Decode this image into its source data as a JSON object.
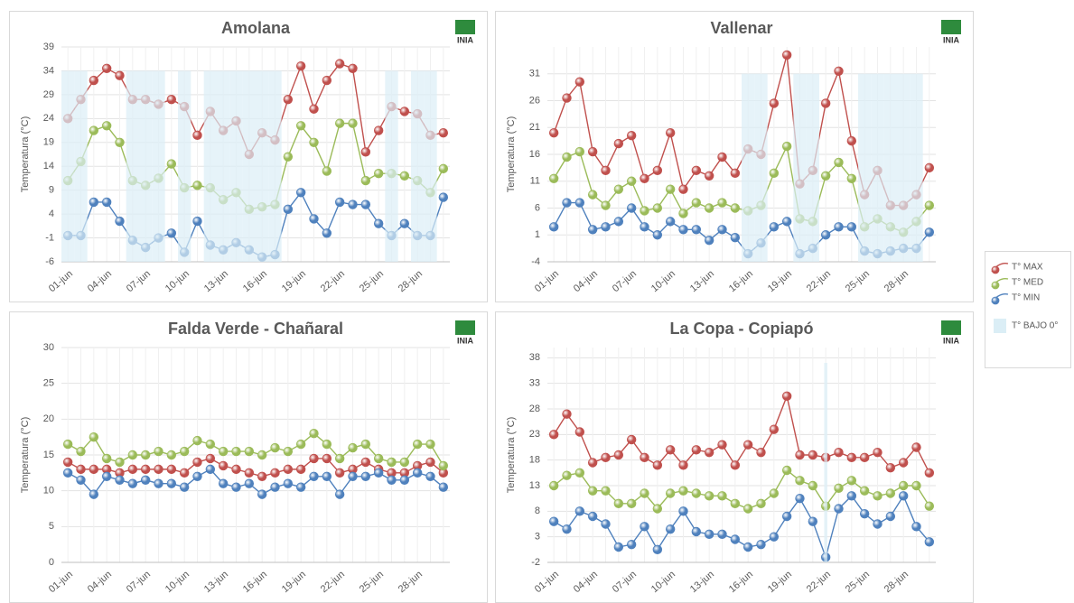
{
  "logo": "INIA",
  "chart_data": [
    {
      "type": "line",
      "title": "Amolana",
      "y_label": "Temperatura (°C)",
      "categories": [
        "01-jun",
        null,
        null,
        "04-jun",
        null,
        null,
        "07-jun",
        null,
        null,
        "10-jun",
        null,
        null,
        "13-jun",
        null,
        null,
        "16-jun",
        null,
        null,
        "19-jun",
        null,
        null,
        "22-jun",
        null,
        null,
        "25-jun",
        null,
        null,
        "28-jun",
        null,
        null
      ],
      "ylim": [
        -6,
        39
      ],
      "yticks": [
        -6,
        -1,
        4,
        9,
        14,
        19,
        24,
        29,
        34,
        39
      ],
      "grid": true,
      "series": [
        {
          "name": "T° MAX",
          "color": "#c0504d",
          "values": [
            24,
            28,
            32,
            34.5,
            33,
            28,
            28,
            27,
            28,
            26.5,
            20.5,
            25.5,
            21.5,
            23.5,
            16.5,
            21,
            19.5,
            28,
            35,
            26,
            32,
            35.5,
            34.5,
            17,
            21.5,
            26.5,
            25.5,
            25,
            20.5,
            21
          ]
        },
        {
          "name": "T° MED",
          "color": "#9bbb59",
          "values": [
            11,
            15,
            21.5,
            22.5,
            19,
            11,
            10,
            11.5,
            14.5,
            9.5,
            10,
            9.5,
            7,
            8.5,
            5,
            5.5,
            6,
            16,
            22.5,
            19,
            13,
            23,
            23,
            11,
            12.5,
            12.5,
            12,
            11,
            8.5,
            13.5
          ]
        },
        {
          "name": "T° MIN",
          "color": "#4f81bd",
          "values": [
            -0.5,
            -0.5,
            6.5,
            6.5,
            2.5,
            -1.5,
            -3,
            -1,
            0,
            -4,
            2.5,
            -2.5,
            -3.5,
            -2,
            -3.5,
            -5,
            -4.5,
            5,
            8.5,
            3,
            0,
            6.5,
            6,
            6,
            2,
            -0.5,
            2,
            -0.5,
            -0.5,
            7.5
          ]
        },
        {
          "name": "T° BAJO 0°",
          "type": "bar",
          "color": "#dbeef6",
          "values": [
            34,
            34,
            null,
            null,
            null,
            34,
            34,
            34,
            null,
            34,
            null,
            34,
            34,
            34,
            34,
            34,
            34,
            null,
            null,
            null,
            null,
            null,
            null,
            null,
            null,
            34,
            null,
            34,
            34,
            null
          ]
        }
      ]
    },
    {
      "type": "line",
      "title": "Vallenar",
      "y_label": "Temperatura (°C)",
      "categories": [
        "01-jun",
        null,
        null,
        "04-jun",
        null,
        null,
        "07-jun",
        null,
        null,
        "10-jun",
        null,
        null,
        "13-jun",
        null,
        null,
        "16-jun",
        null,
        null,
        "19-jun",
        null,
        null,
        "22-jun",
        null,
        null,
        "25-jun",
        null,
        null,
        "28-jun",
        null,
        null
      ],
      "ylim": [
        -4,
        36
      ],
      "yticks": [
        -4,
        1,
        6,
        11,
        16,
        21,
        26,
        31
      ],
      "grid": true,
      "series": [
        {
          "name": "T° MAX",
          "color": "#c0504d",
          "values": [
            20,
            26.5,
            29.5,
            16.5,
            13,
            18,
            19.5,
            11.5,
            13,
            20,
            9.5,
            13,
            12,
            15.5,
            12.5,
            17,
            16,
            25.5,
            34.5,
            10.5,
            13,
            25.5,
            31.5,
            18.5,
            8.5,
            13,
            6.5,
            6.5,
            8.5,
            13.5
          ]
        },
        {
          "name": "T° MED",
          "color": "#9bbb59",
          "values": [
            11.5,
            15.5,
            16.5,
            8.5,
            6.5,
            9.5,
            11,
            5.5,
            6,
            9.5,
            5,
            7,
            6,
            7,
            6,
            5.5,
            6.5,
            12.5,
            17.5,
            4,
            3.5,
            12,
            14.5,
            11.5,
            2.5,
            4,
            2.5,
            1.5,
            3.5,
            6.5
          ]
        },
        {
          "name": "T° MIN",
          "color": "#4f81bd",
          "values": [
            2.5,
            7,
            7,
            2,
            2.5,
            3.5,
            6,
            2.5,
            1,
            3.5,
            2,
            2,
            0,
            2,
            0.5,
            -2.5,
            -0.5,
            2.5,
            3.5,
            -2.5,
            -1.5,
            1,
            2.5,
            2.5,
            -2,
            -2.5,
            -2,
            -1.5,
            -1.5,
            1.5
          ]
        },
        {
          "name": "T° BAJO 0°",
          "type": "bar",
          "color": "#dbeef6",
          "values": [
            null,
            null,
            null,
            null,
            null,
            null,
            null,
            null,
            null,
            null,
            null,
            null,
            null,
            null,
            null,
            31,
            31,
            null,
            null,
            31,
            31,
            null,
            null,
            null,
            31,
            31,
            31,
            31,
            31,
            null
          ]
        }
      ]
    },
    {
      "type": "line",
      "title": "Falda Verde  - Chañaral",
      "y_label": "Temperatura (°C)",
      "categories": [
        "01-jun",
        null,
        null,
        "04-jun",
        null,
        null,
        "07-jun",
        null,
        null,
        "10-jun",
        null,
        null,
        "13-jun",
        null,
        null,
        "16-jun",
        null,
        null,
        "19-jun",
        null,
        null,
        "22-jun",
        null,
        null,
        "25-jun",
        null,
        null,
        "28-jun",
        null,
        null
      ],
      "ylim": [
        0,
        30
      ],
      "yticks": [
        0,
        5,
        10,
        15,
        20,
        25,
        30
      ],
      "grid": true,
      "series": [
        {
          "name": "T° MAX",
          "color": "#c0504d",
          "values": [
            14,
            13,
            13,
            13,
            12.5,
            13,
            13,
            13,
            13,
            12.5,
            14,
            14.5,
            13.5,
            13,
            12.5,
            12,
            12.5,
            13,
            13,
            14.5,
            14.5,
            12.5,
            13,
            14,
            13,
            12.5,
            12.5,
            13.5,
            14,
            12.5
          ]
        },
        {
          "name": "T° MED",
          "color": "#9bbb59",
          "values": [
            16.5,
            15.5,
            17.5,
            14.5,
            14,
            15,
            15,
            15.5,
            15,
            15.5,
            17,
            16.5,
            15.5,
            15.5,
            15.5,
            15,
            16,
            15.5,
            16.5,
            18,
            16.5,
            14.5,
            16,
            16.5,
            14.5,
            14,
            14,
            16.5,
            16.5,
            13.5
          ]
        },
        {
          "name": "T° MIN",
          "color": "#4f81bd",
          "values": [
            12.5,
            11.5,
            9.5,
            12,
            11.5,
            11,
            11.5,
            11,
            11,
            10.5,
            12,
            13,
            11,
            10.5,
            11,
            9.5,
            10.5,
            11,
            10.5,
            12,
            12,
            9.5,
            12,
            12,
            12.5,
            11.5,
            11.5,
            12.5,
            12,
            10.5
          ]
        }
      ]
    },
    {
      "type": "line",
      "title": "La Copa - Copiapó",
      "y_label": "Temperatura (°C)",
      "categories": [
        "01-jun",
        null,
        null,
        "04-jun",
        null,
        null,
        "07-jun",
        null,
        null,
        "10-jun",
        null,
        null,
        "13-jun",
        null,
        null,
        "16-jun",
        null,
        null,
        "19-jun",
        null,
        null,
        "22-jun",
        null,
        null,
        "25-jun",
        null,
        null,
        "28-jun",
        null,
        null
      ],
      "ylim": [
        -2,
        40
      ],
      "yticks": [
        -2,
        3,
        8,
        13,
        18,
        23,
        28,
        33,
        38
      ],
      "grid": true,
      "series": [
        {
          "name": "T° MAX",
          "color": "#c0504d",
          "values": [
            23,
            27,
            23.5,
            17.5,
            18.5,
            19,
            22,
            18.5,
            17,
            20,
            17,
            20,
            19.5,
            21,
            17,
            21,
            19.5,
            24,
            30.5,
            19,
            19,
            18.5,
            19.5,
            18.5,
            18.5,
            19.5,
            16.5,
            17.5,
            20.5,
            15.5
          ]
        },
        {
          "name": "T° MED",
          "color": "#9bbb59",
          "values": [
            13,
            15,
            15.5,
            12,
            12,
            9.5,
            9.5,
            11.5,
            8.5,
            11.5,
            12,
            11.5,
            11,
            11,
            9.5,
            8.5,
            9.5,
            11.5,
            16,
            14,
            13,
            9,
            12.5,
            14,
            12,
            11,
            11.5,
            13,
            13,
            9
          ]
        },
        {
          "name": "T° MIN",
          "color": "#4f81bd",
          "values": [
            6,
            4.5,
            8,
            7,
            5.5,
            1,
            1.5,
            5,
            0.5,
            4.5,
            8,
            4,
            3.5,
            3.5,
            2.5,
            1,
            1.5,
            3,
            7,
            10.5,
            6,
            -1,
            8.5,
            11,
            7.5,
            5.5,
            7,
            11,
            5,
            2
          ]
        },
        {
          "name": "T° BAJO 0°",
          "type": "bar",
          "color": "#dbeef6",
          "values": [
            null,
            null,
            null,
            null,
            null,
            null,
            null,
            null,
            null,
            null,
            null,
            null,
            null,
            null,
            null,
            null,
            null,
            null,
            null,
            null,
            null,
            37,
            null,
            null,
            null,
            null,
            null,
            null,
            null,
            null
          ]
        }
      ]
    }
  ]
}
